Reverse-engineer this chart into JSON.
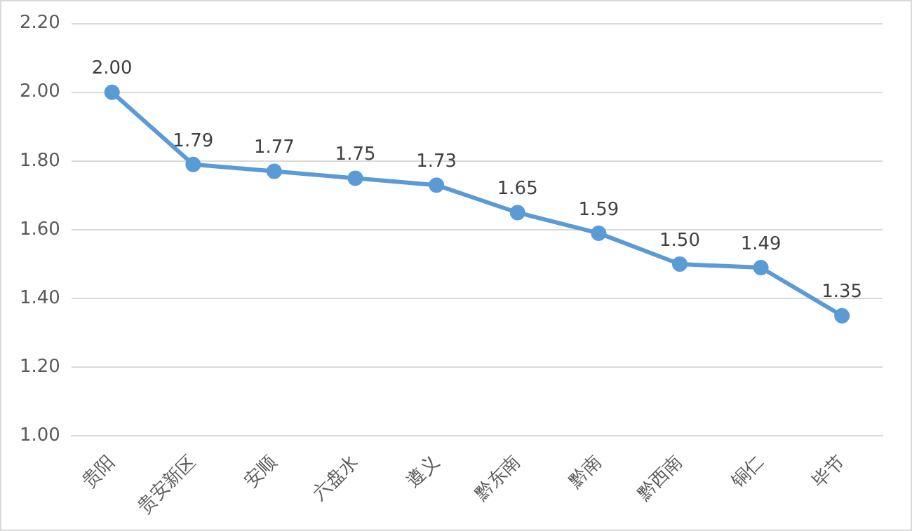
{
  "chart_data": {
    "type": "line",
    "categories": [
      "贵阳",
      "贵安新区",
      "安顺",
      "六盘水",
      "遵义",
      "黔东南",
      "黔南",
      "黔西南",
      "铜仁",
      "毕节"
    ],
    "series": [
      {
        "color": "#5b9bd5",
        "values": [
          2.0,
          1.79,
          1.77,
          1.75,
          1.73,
          1.65,
          1.59,
          1.5,
          1.49,
          1.35
        ],
        "value_labels": [
          "2.00",
          "1.79",
          "1.77",
          "1.75",
          "1.73",
          "1.65",
          "1.59",
          "1.50",
          "1.49",
          "1.35"
        ]
      }
    ],
    "ylim": [
      1.0,
      2.2
    ],
    "yticks": [
      {
        "value": 1.0,
        "label": "1.00"
      },
      {
        "value": 1.2,
        "label": "1.20"
      },
      {
        "value": 1.4,
        "label": "1.40"
      },
      {
        "value": 1.6,
        "label": "1.60"
      },
      {
        "value": 1.8,
        "label": "1.80"
      },
      {
        "value": 2.0,
        "label": "2.00"
      },
      {
        "value": 2.2,
        "label": "2.20"
      }
    ],
    "grid": "y",
    "marker": "circle",
    "line_style": "solid",
    "legend": false
  }
}
